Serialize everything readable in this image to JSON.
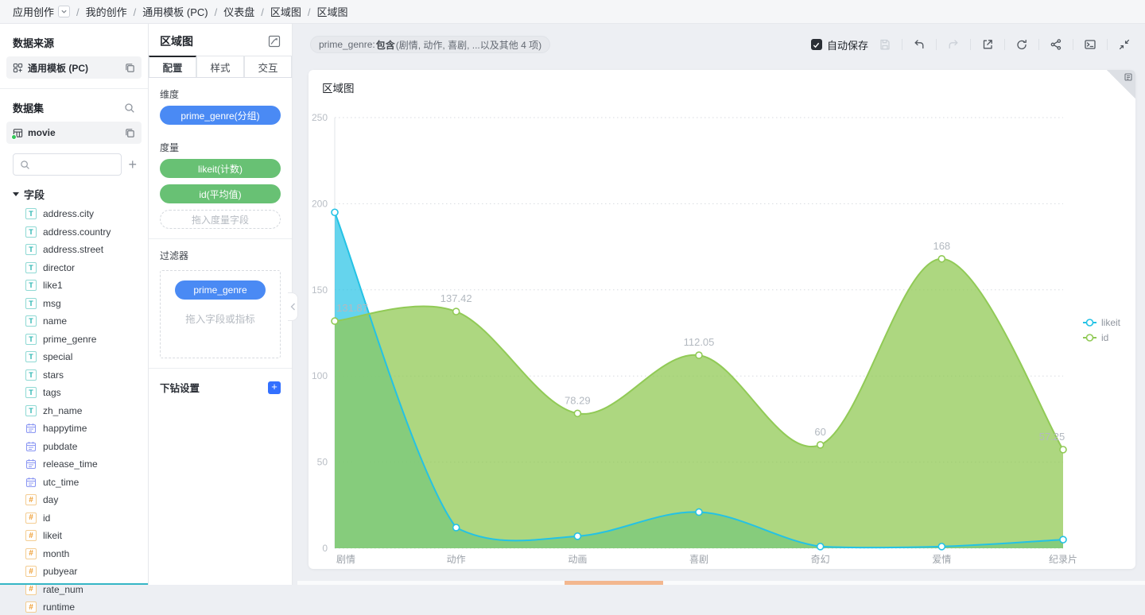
{
  "breadcrumb": {
    "app": "应用创作",
    "items": [
      "我的创作",
      "通用模板 (PC)",
      "仪表盘",
      "区域图",
      "区域图"
    ]
  },
  "sidebar": {
    "datasource": {
      "title": "数据来源",
      "name": "通用模板 (PC)"
    },
    "dataset": {
      "title": "数据集",
      "name": "movie"
    },
    "search_placeholder": "",
    "fields_title": "字段",
    "fields": [
      {
        "name": "address.city",
        "type": "text"
      },
      {
        "name": "address.country",
        "type": "text"
      },
      {
        "name": "address.street",
        "type": "text"
      },
      {
        "name": "director",
        "type": "text"
      },
      {
        "name": "like1",
        "type": "text"
      },
      {
        "name": "msg",
        "type": "text"
      },
      {
        "name": "name",
        "type": "text"
      },
      {
        "name": "prime_genre",
        "type": "text"
      },
      {
        "name": "special",
        "type": "text"
      },
      {
        "name": "stars",
        "type": "text"
      },
      {
        "name": "tags",
        "type": "text"
      },
      {
        "name": "zh_name",
        "type": "text"
      },
      {
        "name": "happytime",
        "type": "time"
      },
      {
        "name": "pubdate",
        "type": "time"
      },
      {
        "name": "release_time",
        "type": "time"
      },
      {
        "name": "utc_time",
        "type": "time"
      },
      {
        "name": "day",
        "type": "number"
      },
      {
        "name": "id",
        "type": "number"
      },
      {
        "name": "likeit",
        "type": "number"
      },
      {
        "name": "month",
        "type": "number"
      },
      {
        "name": "pubyear",
        "type": "number"
      },
      {
        "name": "rate_num",
        "type": "number"
      },
      {
        "name": "runtime",
        "type": "number"
      }
    ]
  },
  "panel": {
    "title": "区域图",
    "tabs": [
      "配置",
      "样式",
      "交互"
    ],
    "active_tab": "配置",
    "dimension": {
      "label": "维度",
      "pills": [
        "prime_genre(分组)"
      ]
    },
    "measure": {
      "label": "度量",
      "pills": [
        "likeit(计数)",
        "id(平均值)"
      ],
      "placeholder": "拖入度量字段"
    },
    "filter": {
      "label": "过滤器",
      "pill": "prime_genre",
      "placeholder": "拖入字段或指标"
    },
    "drill": {
      "label": "下钻设置"
    }
  },
  "toolbar": {
    "filter_chip": {
      "field": "prime_genre:",
      "op": "包含",
      "rest": "(剧情, 动作, 喜剧, ...以及其他 4 项)"
    },
    "autosave_label": "自动保存",
    "icons": [
      {
        "name": "save",
        "enabled": false
      },
      {
        "name": "undo",
        "enabled": true,
        "divider_before": true
      },
      {
        "name": "redo",
        "enabled": false,
        "divider_before": true
      },
      {
        "name": "export",
        "enabled": true,
        "divider_before": true
      },
      {
        "name": "refresh",
        "enabled": true,
        "divider_before": true
      },
      {
        "name": "share",
        "enabled": true,
        "divider_before": true
      },
      {
        "name": "terminal",
        "enabled": true,
        "divider_before": true
      },
      {
        "name": "collapse",
        "enabled": true,
        "divider_before": true
      }
    ]
  },
  "card": {
    "title": "区域图"
  },
  "colors": {
    "dimension_blue": "#4a8af4",
    "measure_green": "#68c174",
    "series_likeit": "#24c2e5",
    "series_id": "#91ca56"
  },
  "chart_data": {
    "type": "area",
    "title": "区域图",
    "categories": [
      "剧情",
      "动作",
      "动画",
      "喜剧",
      "奇幻",
      "爱情",
      "纪录片"
    ],
    "series": [
      {
        "name": "likeit",
        "color": "#24c2e5",
        "fill": "rgba(36,194,229,0.7)",
        "values": [
          195,
          12,
          7,
          21,
          1,
          1,
          5
        ]
      },
      {
        "name": "id",
        "color": "#91ca56",
        "fill": "rgba(145,202,86,0.75)",
        "values": [
          131.87,
          137.42,
          78.29,
          112.05,
          60,
          168,
          57.25
        ],
        "value_labels": [
          "131.87",
          "137.42",
          "78.29",
          "112.05",
          "60",
          "168",
          "57.25"
        ]
      }
    ],
    "xlabel": "",
    "ylabel": "",
    "ylim": [
      0,
      250
    ],
    "yticks": [
      0,
      50,
      100,
      150,
      200,
      250
    ],
    "grid": "dotted",
    "legend_position": "right",
    "smooth": true
  }
}
